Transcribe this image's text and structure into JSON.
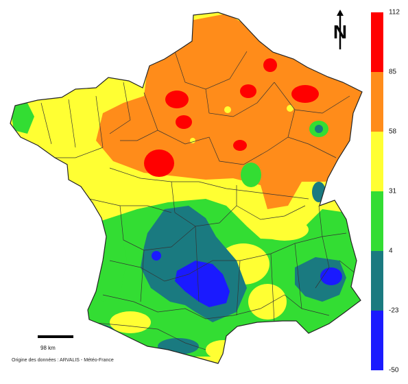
{
  "legend": {
    "ticks": [
      "112",
      "85",
      "58",
      "31",
      "4",
      "-23",
      "-50"
    ],
    "colors": [
      "#ff0000",
      "#ff8c1a",
      "#ffff33",
      "#33dd33",
      "#1a7a80",
      "#1a1aff"
    ]
  },
  "scale_label": "98 km",
  "source": "Origine des données : ARVALIS - Météo-France",
  "north_letter": "N"
}
